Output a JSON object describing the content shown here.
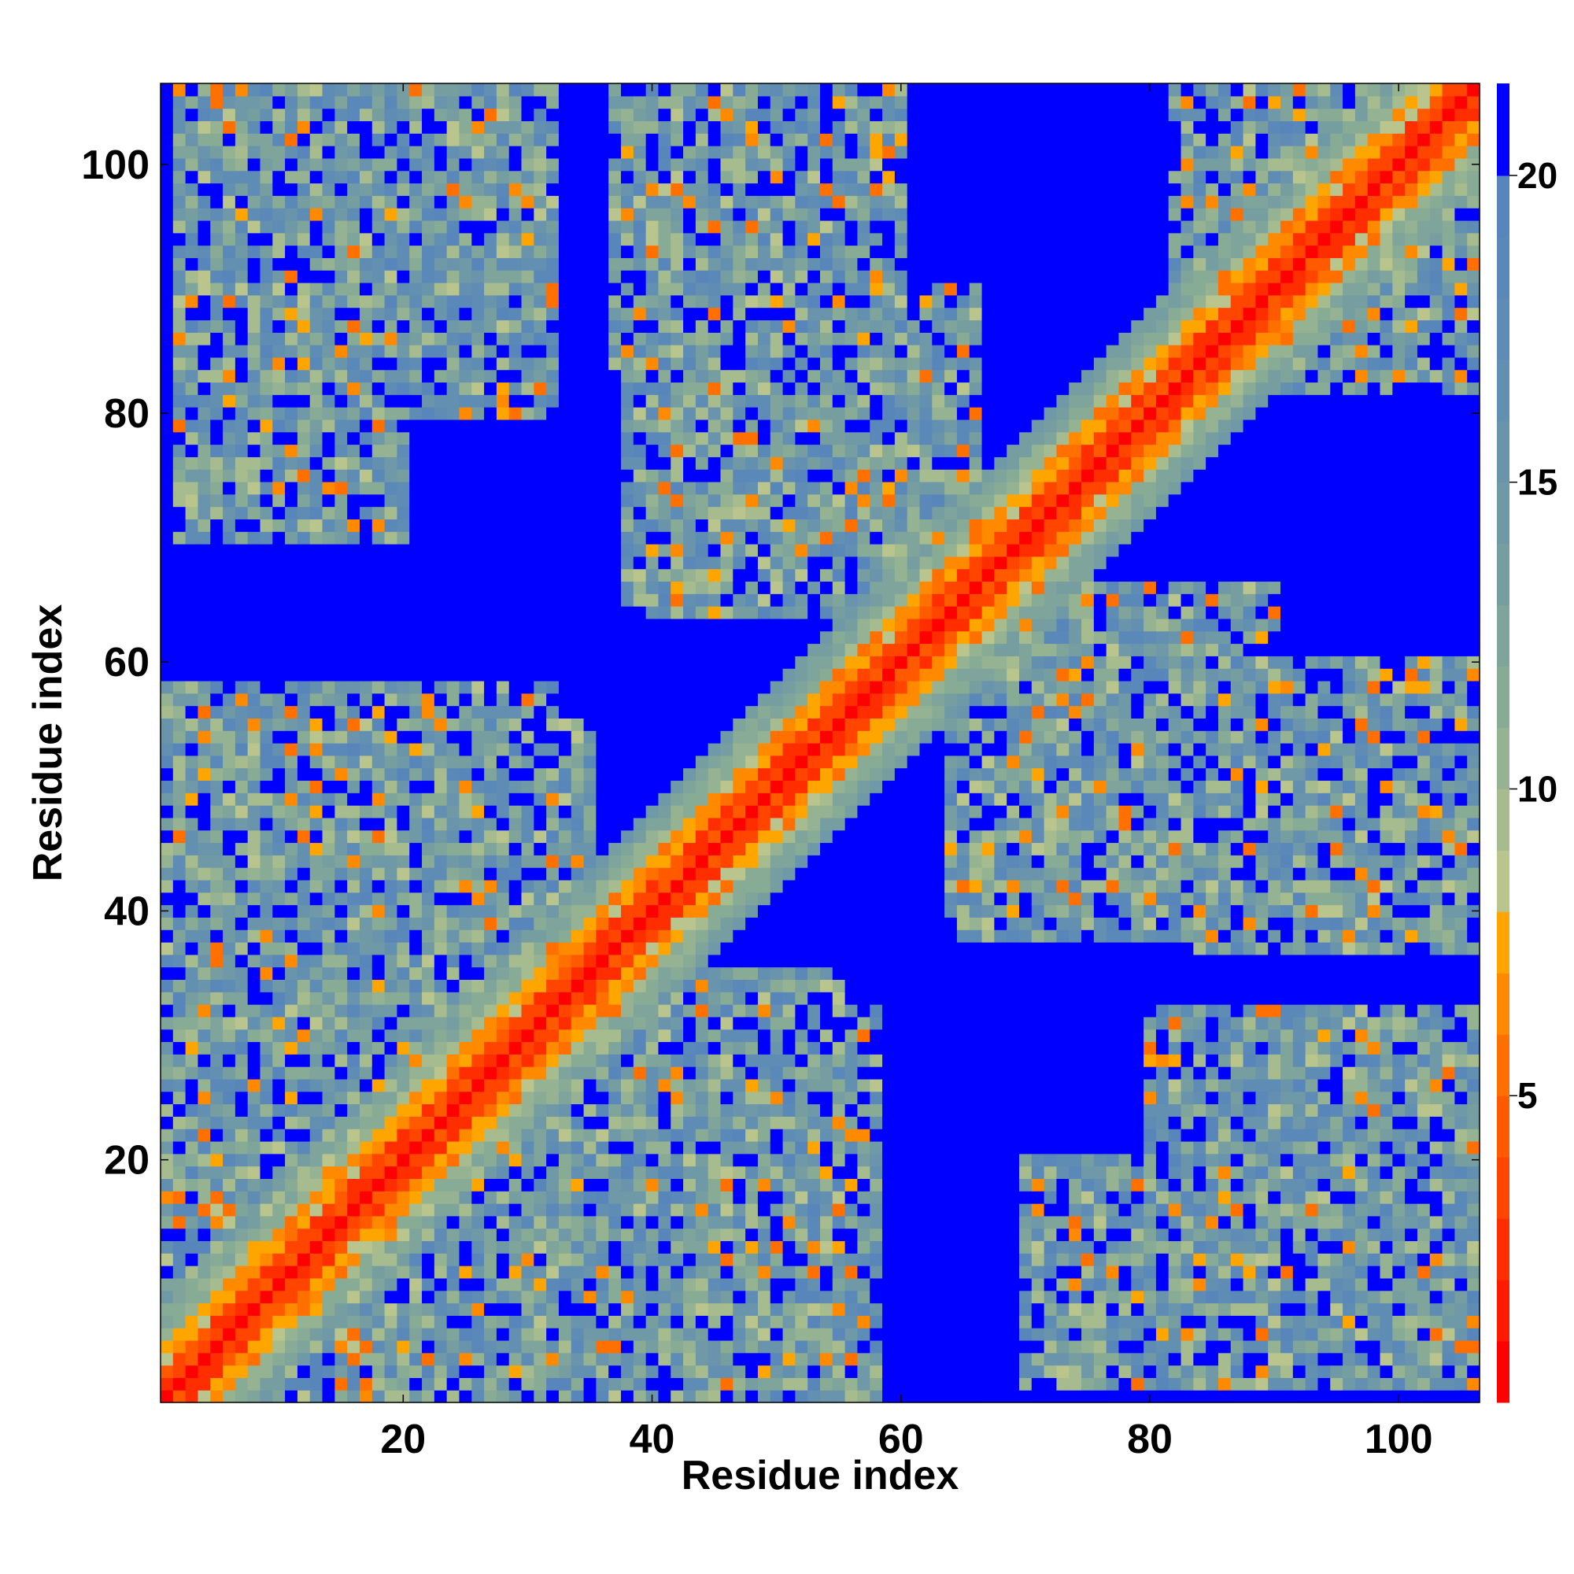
{
  "chart_data": {
    "type": "heatmap",
    "title": "",
    "xlabel": "Residue index",
    "ylabel": "Residue index",
    "n_residues": 106,
    "xlim": [
      0.5,
      106.5
    ],
    "ylim": [
      0.5,
      106.5
    ],
    "x_ticks": [
      20,
      40,
      60,
      80,
      100
    ],
    "y_ticks": [
      20,
      40,
      60,
      80,
      100
    ],
    "x_tick_labels": [
      "20",
      "40",
      "60",
      "80",
      "100"
    ],
    "y_tick_labels": [
      "20",
      "40",
      "60",
      "80",
      "100"
    ],
    "colorbar": {
      "range": [
        0,
        21.5
      ],
      "ticks": [
        5,
        10,
        15,
        20
      ],
      "tick_labels": [
        "5",
        "10",
        "15",
        "20"
      ],
      "levels": [
        {
          "min": 0,
          "max": 1,
          "color": "#ff0000"
        },
        {
          "min": 1,
          "max": 2,
          "color": "#ff1a00"
        },
        {
          "min": 2,
          "max": 3,
          "color": "#ff2e00"
        },
        {
          "min": 3,
          "max": 4,
          "color": "#ff4500"
        },
        {
          "min": 4,
          "max": 5,
          "color": "#ff5a00"
        },
        {
          "min": 5,
          "max": 6,
          "color": "#ff7000"
        },
        {
          "min": 6,
          "max": 7,
          "color": "#ff8a00"
        },
        {
          "min": 7,
          "max": 8,
          "color": "#ffa500"
        },
        {
          "min": 8,
          "max": 9,
          "color": "#b9c58c"
        },
        {
          "min": 9,
          "max": 10,
          "color": "#a7bc8e"
        },
        {
          "min": 10,
          "max": 11,
          "color": "#95b392"
        },
        {
          "min": 11,
          "max": 12,
          "color": "#88ab96"
        },
        {
          "min": 12,
          "max": 13,
          "color": "#7ea49b"
        },
        {
          "min": 13,
          "max": 14,
          "color": "#769ea0"
        },
        {
          "min": 14,
          "max": 15,
          "color": "#6f99a6"
        },
        {
          "min": 15,
          "max": 16,
          "color": "#6994ab"
        },
        {
          "min": 16,
          "max": 17,
          "color": "#6390b0"
        },
        {
          "min": 17,
          "max": 18,
          "color": "#5e8cb4"
        },
        {
          "min": 18,
          "max": 19,
          "color": "#5a88b8"
        },
        {
          "min": 19,
          "max": 20,
          "color": "#5886bb"
        },
        {
          "min": 20,
          "max": 21.5,
          "color": "#0000ff"
        }
      ]
    },
    "contact_clusters": [
      {
        "x": [
          2,
          32
        ],
        "y": [
          80,
          106
        ]
      },
      {
        "x": [
          37,
          58
        ],
        "y": [
          84,
          106
        ]
      },
      {
        "x": [
          40,
          65
        ],
        "y": [
          65,
          90
        ]
      },
      {
        "x": [
          82,
          106
        ],
        "y": [
          86,
          106
        ]
      },
      {
        "x": [
          1,
          32
        ],
        "y": [
          33,
          58
        ]
      },
      {
        "x": [
          1,
          30
        ],
        "y": [
          10,
          35
        ]
      },
      {
        "x": [
          24,
          55
        ],
        "y": [
          12,
          35
        ]
      },
      {
        "x": [
          20,
          58
        ],
        "y": [
          2,
          15
        ]
      },
      {
        "x": [
          64,
          90
        ],
        "y": [
          38,
          66
        ]
      },
      {
        "x": [
          84,
          106
        ],
        "y": [
          38,
          60
        ]
      },
      {
        "x": [
          70,
          95
        ],
        "y": [
          2,
          20
        ]
      },
      {
        "x": [
          82,
          106
        ],
        "y": [
          2,
          30
        ]
      }
    ]
  }
}
